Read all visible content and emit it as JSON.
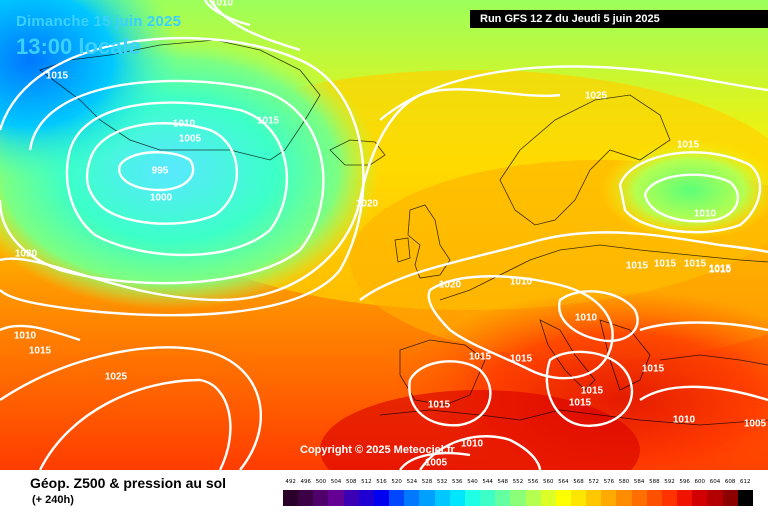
{
  "header": {
    "date": "Dimanche 15 juin 2025",
    "time": "13:00 locale",
    "run": "Run GFS 12 Z du Jeudi 5 juin 2025"
  },
  "copyright": "Copyright © 2025 Meteociel.fr",
  "legend": {
    "title": "Géop. Z500 & pression au sol",
    "subtitle": "(+ 240h)",
    "scale_values": [
      "492",
      "496",
      "500",
      "504",
      "508",
      "512",
      "516",
      "520",
      "524",
      "528",
      "532",
      "536",
      "540",
      "544",
      "548",
      "552",
      "556",
      "560",
      "564",
      "568",
      "572",
      "576",
      "580",
      "584",
      "588",
      "592",
      "596",
      "600",
      "604",
      "608",
      "612"
    ],
    "scale_colors": [
      "#2a002a",
      "#3c0046",
      "#50006a",
      "#640094",
      "#3c00b4",
      "#1e00d2",
      "#0000f0",
      "#0046ff",
      "#0078ff",
      "#00a0ff",
      "#00c8ff",
      "#00e6ff",
      "#1effe6",
      "#3cffc8",
      "#64ffa0",
      "#8cff78",
      "#b4ff50",
      "#dcff28",
      "#ffff00",
      "#ffe600",
      "#ffc800",
      "#ffaa00",
      "#ff8c00",
      "#ff6e00",
      "#ff5000",
      "#ff3200",
      "#f01400",
      "#d20000",
      "#b40000",
      "#8c0000",
      "#000000"
    ]
  },
  "isobars": [
    {
      "label": "1010"
    },
    {
      "label": "1015"
    },
    {
      "label": "1010"
    },
    {
      "label": "1005"
    },
    {
      "label": "1015"
    },
    {
      "label": "995"
    },
    {
      "label": "1000"
    },
    {
      "label": "1020"
    },
    {
      "label": "1025"
    },
    {
      "label": "1015"
    },
    {
      "label": "1010"
    },
    {
      "label": "1015"
    },
    {
      "label": "1015"
    },
    {
      "label": "1015"
    },
    {
      "label": "1020"
    },
    {
      "label": "1010"
    },
    {
      "label": "1010"
    },
    {
      "label": "1010"
    },
    {
      "label": "1015"
    },
    {
      "label": "1015"
    },
    {
      "label": "1015"
    },
    {
      "label": "1015"
    },
    {
      "label": "1010"
    },
    {
      "label": "1015"
    },
    {
      "label": "1015"
    },
    {
      "label": "1025"
    },
    {
      "label": "1020"
    },
    {
      "label": "1010"
    },
    {
      "label": "1015"
    },
    {
      "label": "1015"
    },
    {
      "label": "1005"
    },
    {
      "label": "1010"
    },
    {
      "label": "1005"
    }
  ]
}
